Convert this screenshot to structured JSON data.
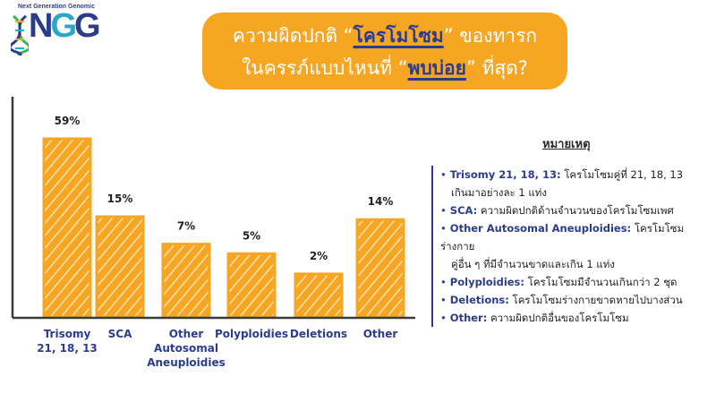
{
  "logo": {
    "tagline": "Next Generation Genomic",
    "letters": [
      "N",
      "G",
      "G"
    ]
  },
  "title": {
    "line1_prefix": "ความผิดปกติ “",
    "line1_highlight": "โครโมโซม",
    "line1_suffix": "” ของทารก",
    "line2_prefix": "ในครรภ์แบบไหนที่ “",
    "line2_highlight": "พบบ่อย",
    "line2_suffix": "” ที่สุด?"
  },
  "colors": {
    "bar": "#f6a623",
    "bar_hatch": "#fbd38a",
    "accent_blue": "#2c3c8c",
    "title_bg": "#f6a623"
  },
  "chart_data": {
    "type": "bar",
    "categories": [
      "Trisomy 21, 18, 13",
      "SCA",
      "Other Autosomal Aneuploidies",
      "Polyploidies",
      "Deletions",
      "Other"
    ],
    "category_lines": [
      [
        "Trisomy",
        "21, 18, 13"
      ],
      [
        "SCA"
      ],
      [
        "Other",
        "Autosomal",
        "Aneuploidies"
      ],
      [
        "Polyploidies"
      ],
      [
        "Deletions"
      ],
      [
        "Other"
      ]
    ],
    "values": [
      59,
      15,
      7,
      5,
      2,
      14
    ],
    "data_labels": [
      "59%",
      "15%",
      "7%",
      "5%",
      "2%",
      "14%"
    ],
    "title": "",
    "xlabel": "",
    "ylabel": "",
    "grid": false,
    "legend": "right"
  },
  "legend": {
    "title": "หมายเหตุ",
    "items": [
      {
        "term": "Trisomy 21, 18, 13:",
        "desc": " โครโมโซมคู่ที่ 21, 18, 13",
        "cont": "เกินมาอย่างละ 1 แท่ง"
      },
      {
        "term": "SCA:",
        "desc": " ความผิดปกติด้านจำนวนของโครโมโซมเพศ",
        "cont": ""
      },
      {
        "term": "Other Autosomal Aneuploidies:",
        "desc": " โครโมโซมร่างกาย",
        "cont": "คู่อื่น ๆ ที่มีจำนวนขาดและเกิน 1 แท่ง"
      },
      {
        "term": "Polyploidies:",
        "desc": " โครโมโซมมีจำนวนเกินกว่า 2 ชุด",
        "cont": ""
      },
      {
        "term": "Deletions:",
        "desc": " โครโมโซมร่างกายขาดหายไปบางส่วน",
        "cont": ""
      },
      {
        "term": "Other:",
        "desc": " ความผิดปกติอื่นของโครโมโซม",
        "cont": ""
      }
    ]
  }
}
